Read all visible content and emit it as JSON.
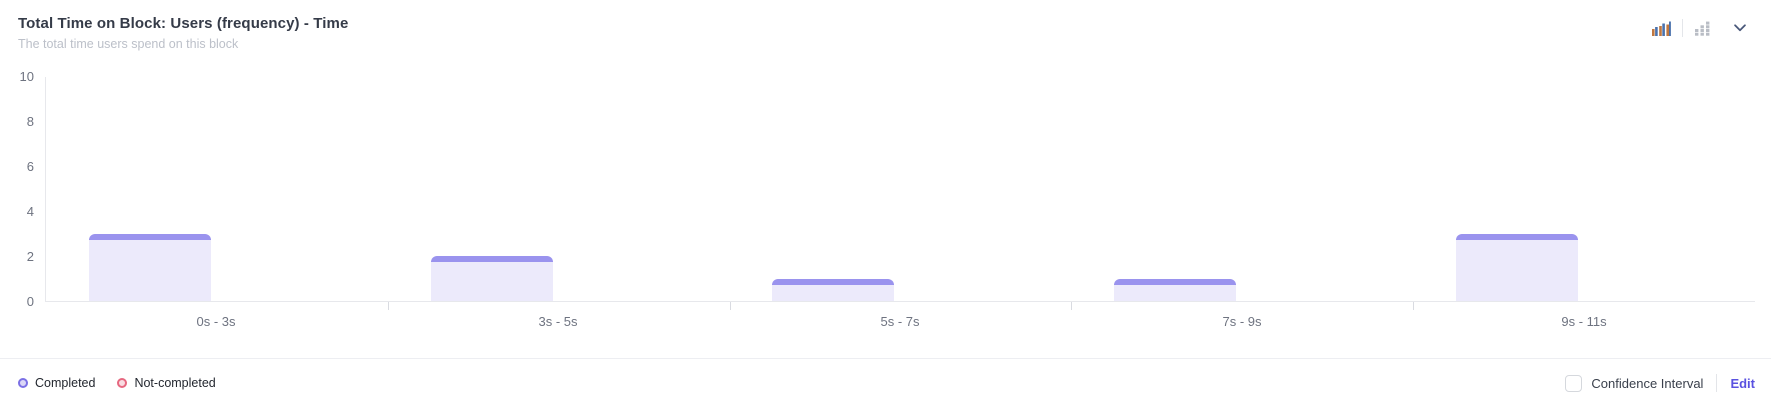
{
  "header": {
    "title": "Total Time on Block: Users (frequency) - Time",
    "subtitle": "The total time users spend on this block",
    "toolbar": {
      "icons": [
        "grouped-bar-chart-icon",
        "dot-plot-icon",
        "chevron-down-icon"
      ]
    }
  },
  "chart_data": {
    "type": "bar",
    "categories": [
      "0s - 3s",
      "3s - 5s",
      "5s - 7s",
      "7s - 9s",
      "9s - 11s"
    ],
    "series": [
      {
        "name": "Completed",
        "color_fill": "#eceafb",
        "color_cap": "#9a93ee",
        "values": [
          3,
          2,
          1,
          1,
          3
        ]
      },
      {
        "name": "Not-completed",
        "color_fill": "#fbdfe5",
        "color_cap": "#e66880",
        "values": [
          0,
          0,
          0,
          0,
          0
        ]
      }
    ],
    "title": "Total Time on Block: Users (frequency) - Time",
    "xlabel": "",
    "ylabel": "",
    "ylim": [
      0,
      10
    ],
    "yticks": [
      0,
      2,
      4,
      6,
      8,
      10
    ],
    "grid": false,
    "legend_position": "bottom"
  },
  "footer": {
    "legend": [
      {
        "label": "Completed",
        "color": "#7b70e5"
      },
      {
        "label": "Not-completed",
        "color": "#e66880"
      }
    ],
    "confidence_label": "Confidence Interval",
    "confidence_checked": false,
    "edit_label": "Edit",
    "edit_color": "#5a52e0"
  }
}
